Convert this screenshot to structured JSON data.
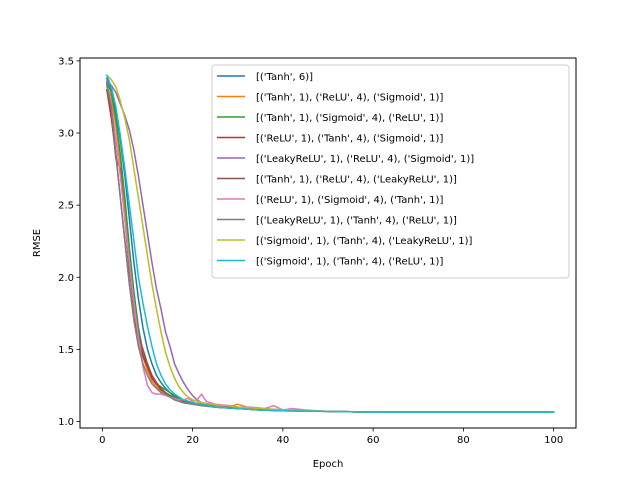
{
  "chart_data": {
    "type": "line",
    "xlabel": "Epoch",
    "ylabel": "RMSE",
    "xlim": [
      -4.95,
      104.95
    ],
    "ylim": [
      0.955,
      3.52
    ],
    "xticks": [
      0,
      20,
      40,
      60,
      80,
      100
    ],
    "yticks": [
      1.0,
      1.5,
      2.0,
      2.5,
      3.0,
      3.5
    ],
    "ytick_labels": [
      "1.0",
      "1.5",
      "2.0",
      "2.5",
      "3.0",
      "3.5"
    ],
    "xtick_labels": [
      "0",
      "20",
      "40",
      "60",
      "80",
      "100"
    ],
    "grid": false,
    "legend_position": "top-right",
    "series": [
      {
        "name": "[('Tanh', 6)]",
        "color": "#1f77b4",
        "x": [
          1,
          2,
          3,
          4,
          5,
          6,
          7,
          8,
          9,
          10,
          11,
          12,
          13,
          14,
          15,
          16,
          17,
          18,
          20,
          22,
          25,
          30,
          35,
          40,
          50,
          60,
          80,
          100
        ],
        "y": [
          3.38,
          3.3,
          3.15,
          2.95,
          2.7,
          2.4,
          2.1,
          1.85,
          1.65,
          1.5,
          1.4,
          1.32,
          1.27,
          1.23,
          1.2,
          1.18,
          1.16,
          1.15,
          1.13,
          1.12,
          1.1,
          1.09,
          1.085,
          1.08,
          1.07,
          1.065,
          1.065,
          1.065
        ]
      },
      {
        "name": "[('Tanh', 1), ('ReLU', 4), ('Sigmoid', 1)]",
        "color": "#ff7f0e",
        "x": [
          1,
          2,
          3,
          4,
          5,
          6,
          7,
          8,
          9,
          10,
          11,
          12,
          13,
          14,
          15,
          16,
          17,
          18,
          20,
          22,
          25,
          28,
          30,
          32,
          35,
          40,
          50,
          60,
          80,
          100
        ],
        "y": [
          3.32,
          3.25,
          3.05,
          2.78,
          2.45,
          2.1,
          1.8,
          1.6,
          1.45,
          1.35,
          1.28,
          1.24,
          1.21,
          1.19,
          1.17,
          1.15,
          1.14,
          1.13,
          1.12,
          1.11,
          1.1,
          1.1,
          1.12,
          1.1,
          1.09,
          1.08,
          1.07,
          1.065,
          1.065,
          1.065
        ]
      },
      {
        "name": "[('Tanh', 1), ('Sigmoid', 4), ('ReLU', 1)]",
        "color": "#2ca02c",
        "x": [
          1,
          2,
          3,
          4,
          5,
          6,
          7,
          8,
          9,
          10,
          11,
          12,
          13,
          14,
          15,
          16,
          17,
          18,
          20,
          22,
          25,
          28,
          30,
          35,
          40,
          50,
          60,
          80,
          100
        ],
        "y": [
          3.35,
          3.28,
          3.1,
          2.85,
          2.55,
          2.2,
          1.9,
          1.65,
          1.48,
          1.38,
          1.3,
          1.26,
          1.24,
          1.22,
          1.2,
          1.17,
          1.16,
          1.15,
          1.13,
          1.12,
          1.11,
          1.11,
          1.1,
          1.09,
          1.08,
          1.07,
          1.065,
          1.065,
          1.065
        ]
      },
      {
        "name": "[('ReLU', 1), ('Tanh', 4), ('Sigmoid', 1)]",
        "color": "#d62728",
        "x": [
          1,
          2,
          3,
          4,
          5,
          6,
          7,
          8,
          9,
          10,
          11,
          12,
          13,
          14,
          15,
          16,
          17,
          18,
          20,
          22,
          25,
          30,
          35,
          40,
          50,
          60,
          80,
          100
        ],
        "y": [
          3.3,
          3.1,
          2.85,
          2.55,
          2.25,
          1.95,
          1.72,
          1.55,
          1.45,
          1.38,
          1.3,
          1.26,
          1.22,
          1.2,
          1.18,
          1.16,
          1.15,
          1.14,
          1.13,
          1.12,
          1.1,
          1.09,
          1.08,
          1.075,
          1.07,
          1.065,
          1.065,
          1.065
        ]
      },
      {
        "name": "[('LeakyReLU', 1), ('ReLU', 4), ('Sigmoid', 1)]",
        "color": "#9467bd",
        "x": [
          1,
          2,
          3,
          4,
          5,
          6,
          7,
          8,
          9,
          10,
          11,
          12,
          13,
          14,
          15,
          16,
          17,
          18,
          19,
          20,
          21,
          22,
          24,
          26,
          28,
          30,
          35,
          40,
          50,
          60,
          80,
          100
        ],
        "y": [
          3.36,
          3.33,
          3.28,
          3.2,
          3.12,
          3.02,
          2.88,
          2.7,
          2.5,
          2.3,
          2.1,
          1.92,
          1.78,
          1.62,
          1.52,
          1.4,
          1.33,
          1.27,
          1.22,
          1.18,
          1.15,
          1.13,
          1.12,
          1.11,
          1.1,
          1.095,
          1.085,
          1.08,
          1.07,
          1.065,
          1.065,
          1.065
        ]
      },
      {
        "name": "[('Tanh', 1), ('ReLU', 4), ('LeakyReLU', 1)]",
        "color": "#8c564b",
        "x": [
          1,
          2,
          3,
          4,
          5,
          6,
          7,
          8,
          9,
          10,
          11,
          12,
          13,
          14,
          15,
          16,
          17,
          18,
          20,
          22,
          25,
          30,
          35,
          40,
          50,
          60,
          80,
          100
        ],
        "y": [
          3.3,
          3.15,
          2.82,
          2.75,
          2.4,
          2.05,
          1.8,
          1.6,
          1.5,
          1.4,
          1.32,
          1.27,
          1.23,
          1.2,
          1.18,
          1.16,
          1.15,
          1.14,
          1.13,
          1.12,
          1.1,
          1.09,
          1.08,
          1.075,
          1.07,
          1.065,
          1.065,
          1.065
        ]
      },
      {
        "name": "[('ReLU', 1), ('Sigmoid', 4), ('Tanh', 1)]",
        "color": "#e377c2",
        "x": [
          1,
          2,
          3,
          4,
          5,
          6,
          7,
          8,
          9,
          10,
          11,
          12,
          13,
          14,
          15,
          16,
          17,
          18,
          19,
          20,
          21,
          22,
          23,
          25,
          28,
          30,
          33,
          36,
          38,
          40,
          42,
          45,
          50,
          60,
          80,
          100
        ],
        "y": [
          3.33,
          3.2,
          2.95,
          2.7,
          2.4,
          2.1,
          1.82,
          1.58,
          1.38,
          1.25,
          1.2,
          1.19,
          1.19,
          1.18,
          1.17,
          1.16,
          1.15,
          1.15,
          1.16,
          1.14,
          1.15,
          1.19,
          1.14,
          1.12,
          1.11,
          1.1,
          1.1,
          1.09,
          1.11,
          1.08,
          1.09,
          1.08,
          1.07,
          1.065,
          1.065,
          1.065
        ]
      },
      {
        "name": "[('LeakyReLU', 1), ('Tanh', 4), ('ReLU', 1)]",
        "color": "#7f7f7f",
        "x": [
          1,
          2,
          3,
          4,
          5,
          6,
          7,
          8,
          9,
          10,
          11,
          12,
          13,
          14,
          15,
          16,
          17,
          18,
          20,
          22,
          25,
          30,
          35,
          40,
          50,
          60,
          80,
          100
        ],
        "y": [
          3.34,
          3.18,
          2.85,
          2.55,
          2.25,
          1.95,
          1.7,
          1.52,
          1.4,
          1.32,
          1.26,
          1.23,
          1.2,
          1.19,
          1.17,
          1.15,
          1.14,
          1.13,
          1.12,
          1.11,
          1.1,
          1.09,
          1.08,
          1.075,
          1.07,
          1.065,
          1.065,
          1.065
        ]
      },
      {
        "name": "[('Sigmoid', 1), ('Tanh', 4), ('LeakyReLU', 1)]",
        "color": "#bcbd22",
        "x": [
          1,
          2,
          3,
          4,
          5,
          6,
          7,
          8,
          9,
          10,
          11,
          12,
          13,
          14,
          15,
          16,
          17,
          18,
          19,
          20,
          22,
          24,
          26,
          28,
          30,
          35,
          40,
          50,
          60,
          80,
          100
        ],
        "y": [
          3.4,
          3.37,
          3.32,
          3.22,
          3.1,
          2.95,
          2.75,
          2.55,
          2.35,
          2.15,
          1.95,
          1.78,
          1.62,
          1.48,
          1.38,
          1.3,
          1.24,
          1.2,
          1.17,
          1.15,
          1.13,
          1.12,
          1.11,
          1.11,
          1.1,
          1.09,
          1.08,
          1.07,
          1.065,
          1.065,
          1.065
        ]
      },
      {
        "name": "[('Sigmoid', 1), ('Tanh', 4), ('ReLU', 1)]",
        "color": "#17becf",
        "x": [
          1,
          2,
          3,
          4,
          5,
          6,
          7,
          8,
          9,
          10,
          11,
          12,
          13,
          14,
          15,
          16,
          17,
          18,
          20,
          22,
          25,
          30,
          35,
          40,
          50,
          60,
          80,
          100
        ],
        "y": [
          3.4,
          3.32,
          3.18,
          2.98,
          2.75,
          2.5,
          2.25,
          2.0,
          1.82,
          1.66,
          1.52,
          1.4,
          1.32,
          1.26,
          1.22,
          1.19,
          1.17,
          1.15,
          1.13,
          1.12,
          1.1,
          1.09,
          1.08,
          1.075,
          1.07,
          1.065,
          1.065,
          1.065
        ]
      }
    ]
  }
}
